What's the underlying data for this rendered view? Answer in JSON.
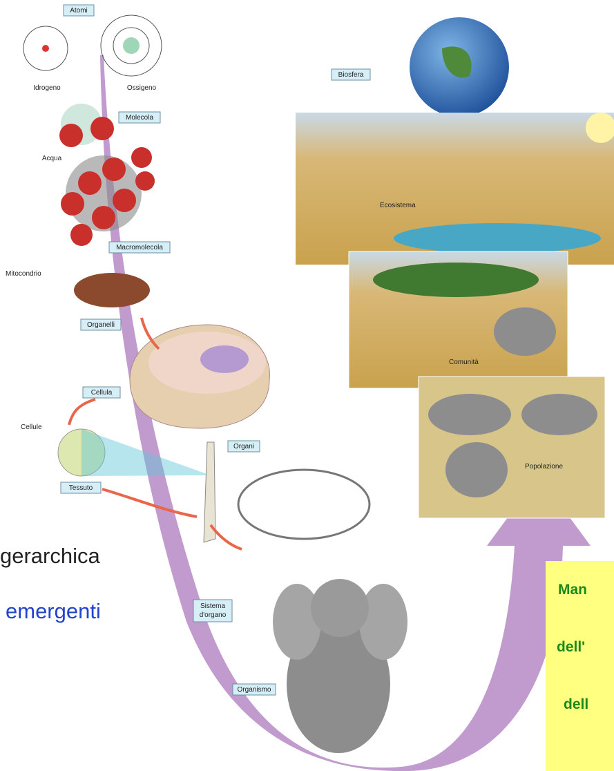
{
  "labels": {
    "atomi": "Atomi",
    "idrogeno": "Idrogeno",
    "ossigeno": "Ossigeno",
    "molecola": "Molecola",
    "acqua": "Acqua",
    "macromolecola": "Macromolecola",
    "mitocondrio": "Mitocondrio",
    "organelli": "Organelli",
    "cellula": "Cellula",
    "cellule": "Cellule",
    "tessuto": "Tessuto",
    "organi": "Organi",
    "sistema_organo": [
      "Sistema",
      "d'organo"
    ],
    "organismo": "Organismo",
    "biosfera": "Biosfera",
    "ecosistema": "Ecosistema",
    "comunita": "Comunità",
    "popolazione": "Popolazione"
  },
  "slide_text": {
    "gerarchica": "gerarchica",
    "emergenti": "emergenti"
  },
  "callout": {
    "lines": [
      "Man",
      "dell'",
      "dell"
    ]
  }
}
